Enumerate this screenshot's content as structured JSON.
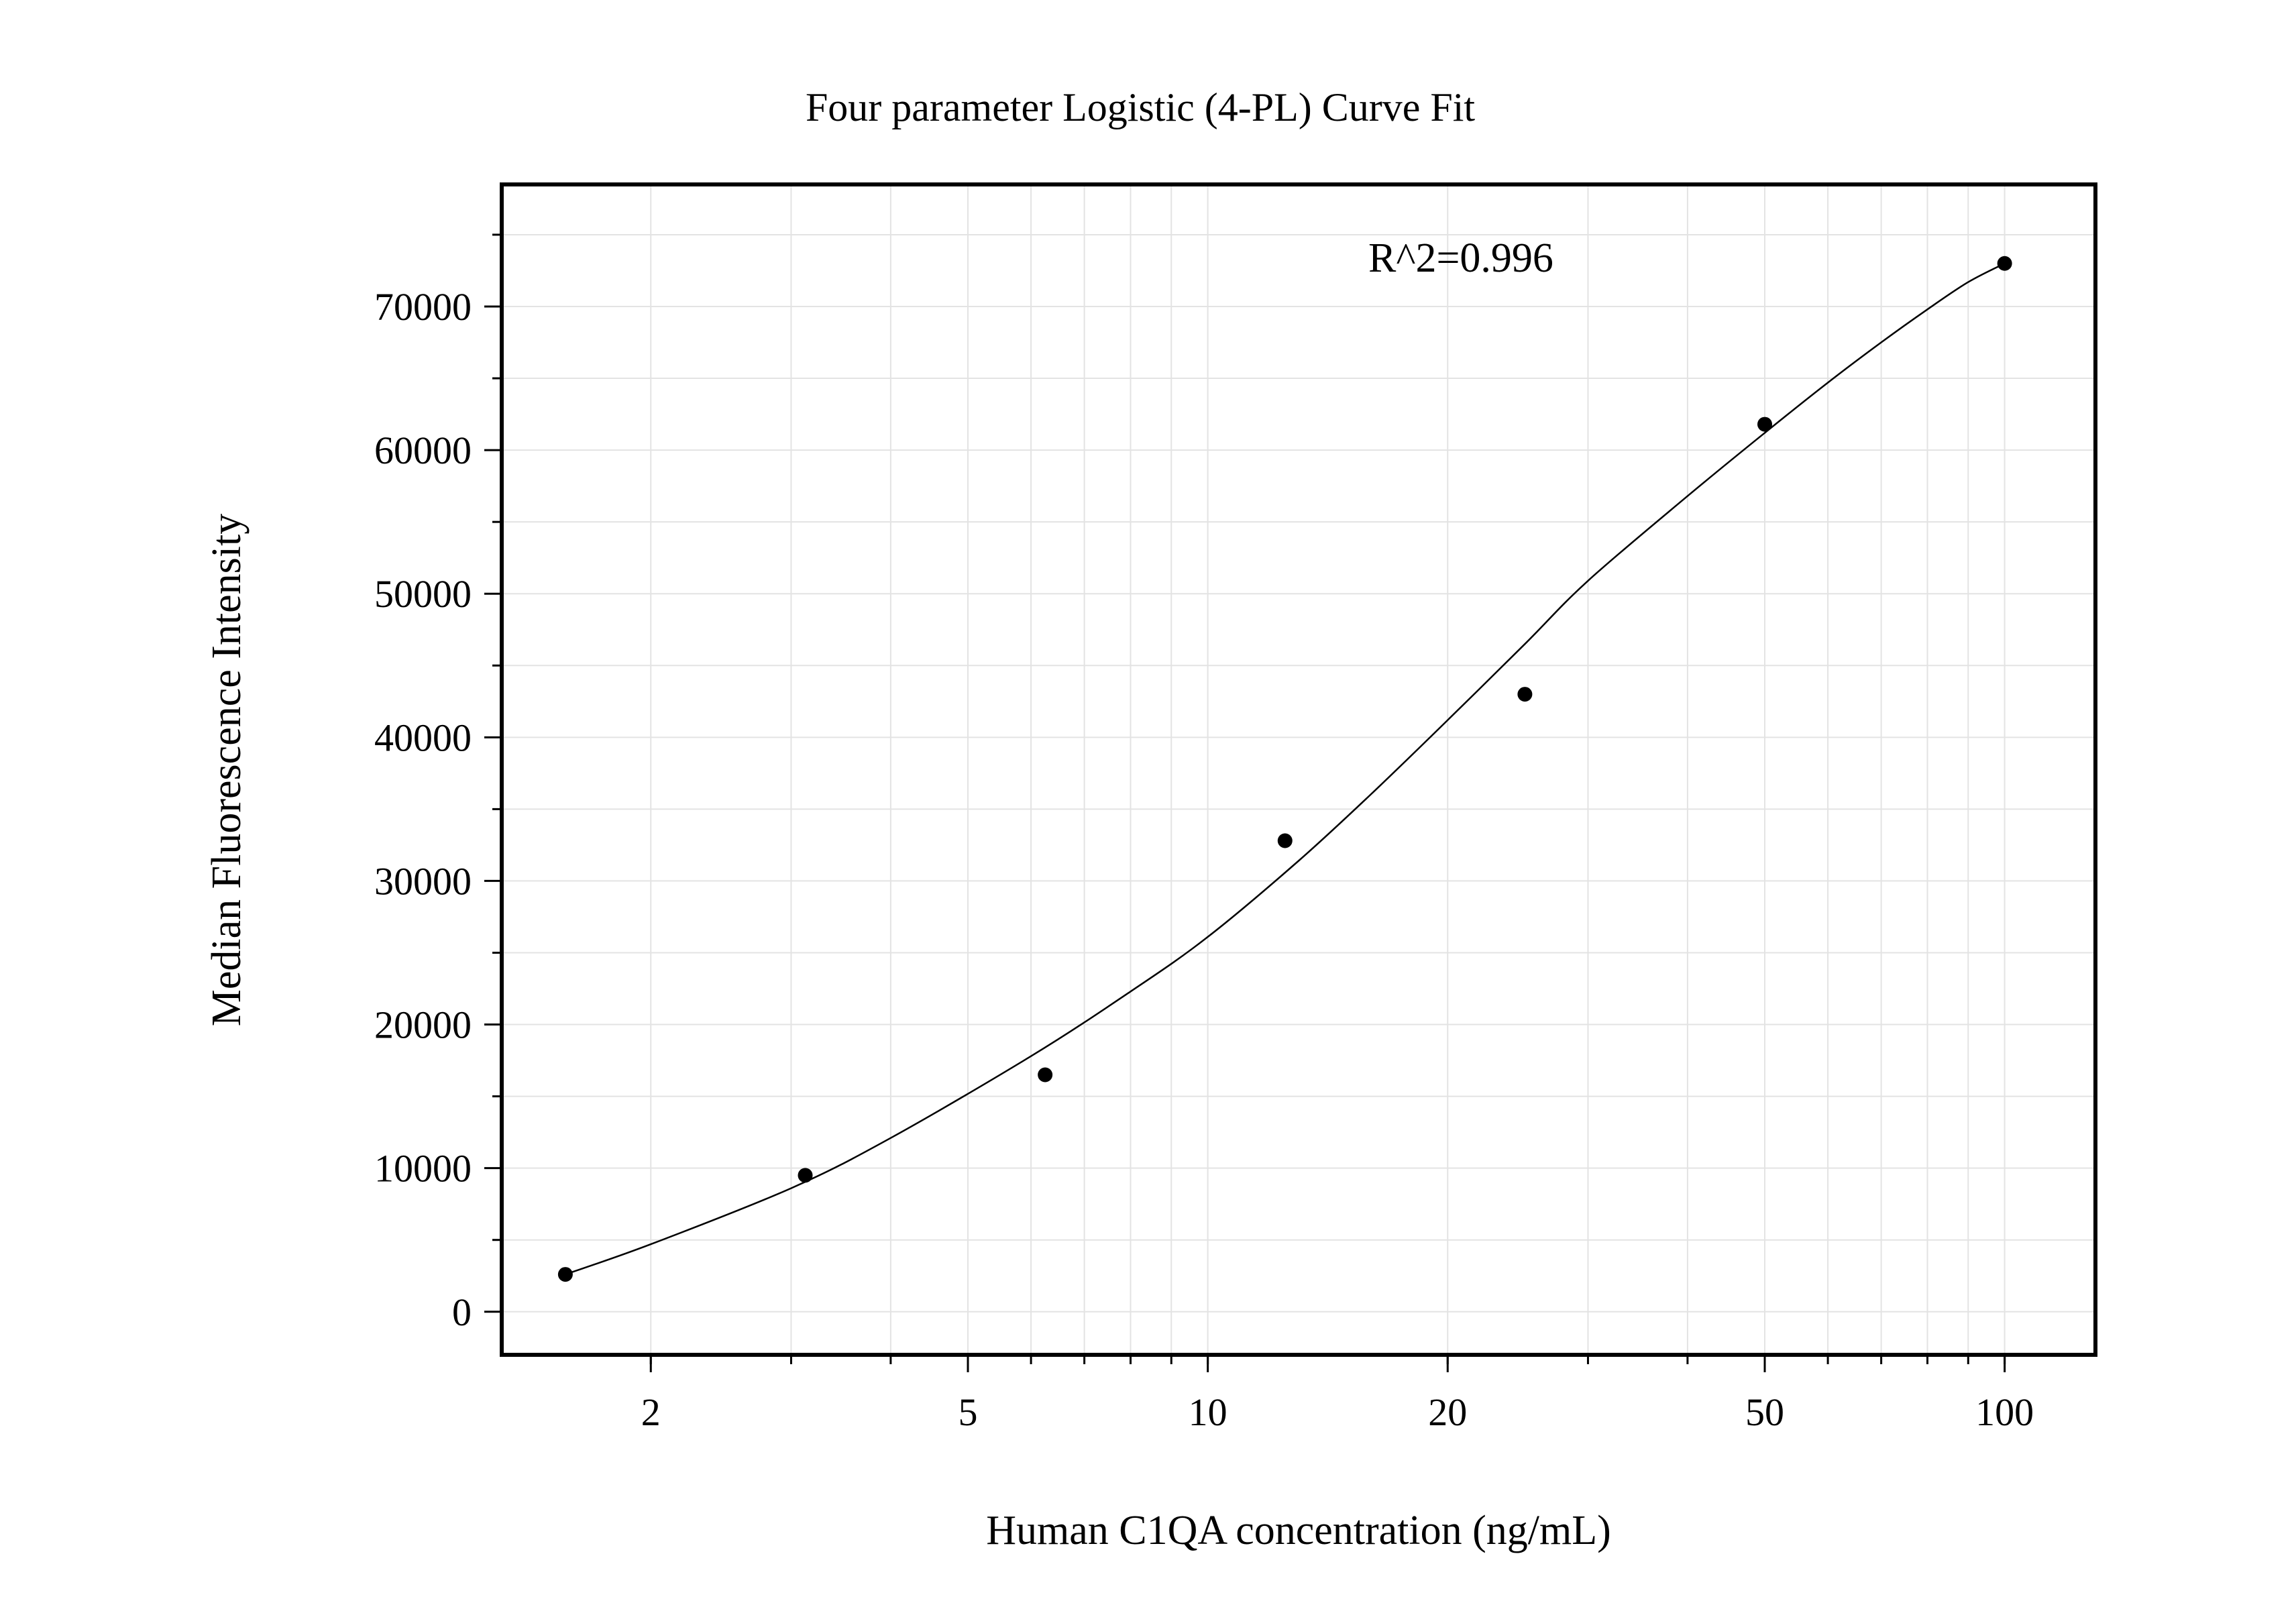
{
  "chart_data": {
    "type": "scatter",
    "title": "Four parameter Logistic (4-PL) Curve Fit",
    "xlabel": "Human C1QA concentration (ng/mL)",
    "ylabel": "Median Fluorescence Intensity",
    "x_scale": "log",
    "xlim": [
      1.3,
      130
    ],
    "ylim": [
      -3000,
      78500
    ],
    "x_ticks": [
      2,
      5,
      10,
      20,
      50,
      100
    ],
    "x_tick_labels": [
      "2",
      "5",
      "10",
      "20",
      "50",
      "100"
    ],
    "y_ticks": [
      0,
      10000,
      20000,
      30000,
      40000,
      50000,
      60000,
      70000
    ],
    "y_tick_labels": [
      "0",
      "10000",
      "20000",
      "30000",
      "40000",
      "50000",
      "60000",
      "70000"
    ],
    "grid": true,
    "annotation": "R^2=0.996",
    "series": [
      {
        "marker": "circle",
        "x": [
          1.5625,
          3.125,
          6.25,
          12.5,
          25,
          50,
          100
        ],
        "y": [
          2600,
          9500,
          16500,
          32800,
          43000,
          61800,
          73000
        ]
      }
    ],
    "fit_curve": {
      "model": "4-PL",
      "x": [
        1.5625,
        2,
        3,
        4,
        6,
        8,
        10,
        13,
        16,
        20,
        25,
        30,
        40,
        50,
        60,
        70,
        80,
        90,
        100
      ],
      "y": [
        2600,
        4700,
        8600,
        12100,
        17800,
        22300,
        26100,
        31400,
        36000,
        41200,
        46500,
        50900,
        56800,
        61200,
        64700,
        67500,
        69800,
        71700,
        73000
      ]
    },
    "colors": {
      "points": "#000000",
      "curve": "#000000",
      "grid": "#e3e3e3",
      "frame": "#000000"
    }
  }
}
